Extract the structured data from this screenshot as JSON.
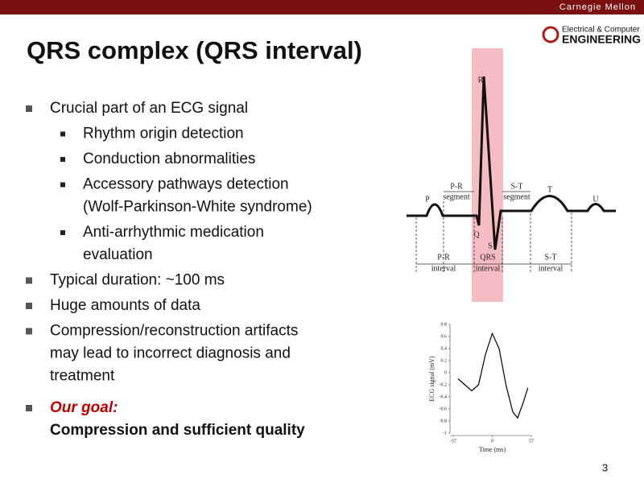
{
  "header": {
    "institution": "Carnegie Mellon",
    "department_line1": "Electrical & Computer",
    "department_line2": "ENGINEERING"
  },
  "title": "QRS complex (QRS interval)",
  "bullets": [
    {
      "lines": [
        "Crucial part of an ECG signal"
      ],
      "sub": [
        {
          "lines": [
            "Rhythm origin detection"
          ]
        },
        {
          "lines": [
            "Conduction abnormalities"
          ]
        },
        {
          "lines": [
            "Accessory pathways detection",
            "(Wolf-Parkinson-White syndrome)"
          ]
        },
        {
          "lines": [
            "Anti-arrhythmic medication",
            "evaluation"
          ]
        }
      ]
    },
    {
      "lines": [
        "Typical duration: ~100 ms"
      ]
    },
    {
      "lines": [
        "Huge amounts of data"
      ]
    },
    {
      "lines": [
        "Compression/reconstruction artifacts",
        "may lead to incorrect diagnosis and",
        "treatment"
      ]
    }
  ],
  "goal": {
    "label": "Our goal:",
    "text": "Compression and sufficient quality"
  },
  "ecg_diagram": {
    "labels": [
      "R",
      "P",
      "P-R",
      "segment",
      "S-T",
      "segment",
      "T",
      "U",
      "Q",
      "S",
      "P-R",
      "interval",
      "QRS",
      "interval",
      "S-T",
      "interval"
    ]
  },
  "chart": {
    "type": "line",
    "x": [
      -50,
      -40,
      -30,
      -20,
      -10,
      0,
      10,
      20,
      30,
      37,
      45,
      52
    ],
    "values": [
      -0.1,
      -0.2,
      -0.3,
      -0.2,
      0.3,
      0.65,
      0.4,
      -0.2,
      -0.65,
      -0.75,
      -0.5,
      -0.25
    ],
    "xlim": [
      -57,
      57
    ],
    "xticks": [
      -57,
      0,
      57
    ],
    "ylim": [
      -1,
      0.8
    ],
    "yticks": [
      0.8,
      0.6,
      0.4,
      0.2,
      0,
      -0.2,
      -0.4,
      -0.6,
      -0.8,
      -1
    ],
    "xlabel": "Time (ms)",
    "ylabel": "ECG signal (mV)",
    "color": "#000000"
  },
  "page_number": "3"
}
